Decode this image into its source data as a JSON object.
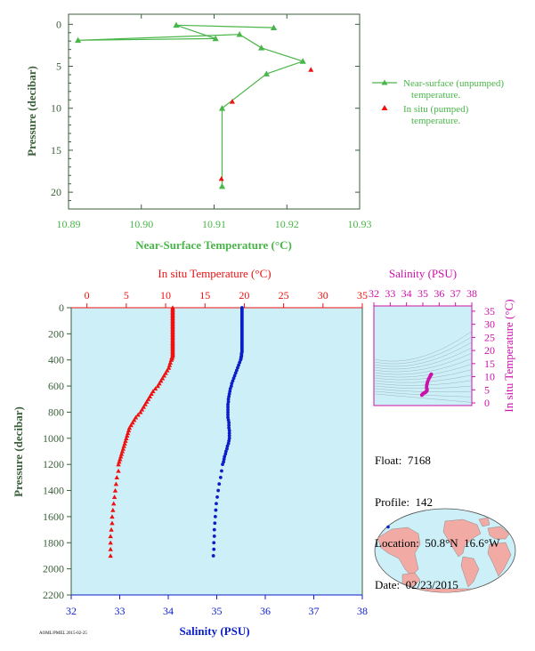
{
  "colors": {
    "axis_green": "#3a5f3a",
    "near_surface_green": "#49b649",
    "in_situ_red": "#ee1111",
    "salinity_blue": "#0b1ec8",
    "salinity_magenta": "#cc11aa",
    "panel_background": "#cdeff7",
    "land": "#f2aaa5",
    "ocean": "#cdeff7"
  },
  "info": {
    "float_label": "Float:",
    "float": "7168",
    "profile_label": "Profile:",
    "profile": "142",
    "location_label": "Location:",
    "location": "50.8°N  16.6°W",
    "date_label": "Date:",
    "date": "02/23/2015"
  },
  "footer_text": "AOML/PMEL 2015-02-25",
  "chart_data": [
    {
      "type": "line",
      "name": "near-surface",
      "xlabel": "Near-Surface Temperature (°C)",
      "ylabel": "Pressure (decibar)",
      "xlim": [
        10.89,
        10.93
      ],
      "ylim": [
        22,
        -1.2
      ],
      "xticks": [
        "10.89",
        "10.90",
        "10.91",
        "10.92",
        "10.93"
      ],
      "yticks": [
        "0",
        "5",
        "10",
        "15",
        "20"
      ],
      "legend_position": "right",
      "series": [
        {
          "name": "Near-surface (unpumped) temperature.",
          "marker": "triangle",
          "points": [
            [
              10.9182,
              0.4
            ],
            [
              10.9048,
              0.1
            ],
            [
              10.9102,
              1.7
            ],
            [
              10.8913,
              1.9
            ],
            [
              10.9135,
              1.2
            ],
            [
              10.9165,
              2.8
            ],
            [
              10.9222,
              4.4
            ],
            [
              10.9172,
              5.9
            ],
            [
              10.9111,
              10.0
            ],
            [
              10.9111,
              19.3
            ]
          ]
        },
        {
          "name": "In situ (pumped) temperature.",
          "marker": "triangle",
          "points": [
            [
              10.9233,
              5.4
            ],
            [
              10.9125,
              9.2
            ],
            [
              10.911,
              18.4
            ]
          ]
        }
      ]
    },
    {
      "type": "scatter",
      "name": "profile",
      "ylabel": "Pressure (decibar)",
      "ylim": [
        2200,
        0
      ],
      "yticks": [
        "0",
        "200",
        "400",
        "600",
        "800",
        "1000",
        "1200",
        "1400",
        "1600",
        "1800",
        "2000",
        "2200"
      ],
      "x_top": {
        "label": "In situ Temperature (°C)",
        "lim": [
          -2,
          35
        ],
        "ticks": [
          "0",
          "5",
          "10",
          "15",
          "20",
          "25",
          "30",
          "35"
        ]
      },
      "x_bottom": {
        "label": "Salinity (PSU)",
        "lim": [
          32,
          38
        ],
        "ticks": [
          "32",
          "33",
          "34",
          "35",
          "36",
          "37",
          "38"
        ]
      },
      "series": [
        {
          "name": "In situ Temperature",
          "marker": "triangle",
          "depths": [
            0,
            10,
            20,
            30,
            40,
            50,
            60,
            70,
            80,
            90,
            100,
            110,
            120,
            130,
            140,
            150,
            160,
            170,
            180,
            190,
            200,
            210,
            220,
            230,
            240,
            250,
            260,
            270,
            280,
            290,
            300,
            310,
            320,
            330,
            340,
            350,
            360,
            370,
            380,
            390,
            400,
            420,
            440,
            460,
            480,
            500,
            520,
            540,
            560,
            580,
            600,
            620,
            640,
            660,
            680,
            700,
            720,
            740,
            760,
            780,
            800,
            820,
            840,
            860,
            880,
            900,
            920,
            940,
            960,
            980,
            1000,
            1020,
            1040,
            1060,
            1080,
            1100,
            1120,
            1140,
            1160,
            1180,
            1200,
            1250,
            1300,
            1350,
            1400,
            1450,
            1500,
            1550,
            1600,
            1650,
            1700,
            1750,
            1800,
            1850,
            1900
          ],
          "values": [
            10.9,
            10.9,
            10.9,
            10.9,
            10.9,
            10.9,
            10.9,
            10.9,
            10.9,
            10.9,
            10.9,
            10.9,
            10.9,
            10.9,
            10.9,
            10.9,
            10.9,
            10.9,
            10.9,
            10.9,
            10.9,
            10.9,
            10.9,
            10.9,
            10.9,
            10.9,
            10.9,
            10.9,
            10.9,
            10.9,
            10.9,
            10.9,
            10.9,
            10.9,
            10.9,
            10.9,
            10.9,
            10.9,
            10.8,
            10.8,
            10.7,
            10.6,
            10.5,
            10.4,
            10.2,
            10.0,
            9.8,
            9.6,
            9.4,
            9.2,
            9.0,
            8.7,
            8.4,
            8.2,
            8.0,
            7.8,
            7.6,
            7.4,
            7.2,
            7.0,
            6.8,
            6.5,
            6.2,
            6.0,
            5.8,
            5.6,
            5.4,
            5.3,
            5.2,
            5.1,
            5.0,
            4.9,
            4.8,
            4.7,
            4.6,
            4.5,
            4.4,
            4.3,
            4.2,
            4.1,
            4.0,
            4.0,
            3.8,
            3.7,
            3.6,
            3.5,
            3.4,
            3.3,
            3.2,
            3.2,
            3.1,
            3.0,
            3.0,
            3.0,
            3.0
          ]
        },
        {
          "name": "Salinity",
          "marker": "dot",
          "depths": [
            0,
            10,
            20,
            30,
            40,
            50,
            60,
            70,
            80,
            90,
            100,
            110,
            120,
            130,
            140,
            150,
            160,
            170,
            180,
            190,
            200,
            210,
            220,
            230,
            240,
            250,
            260,
            270,
            280,
            290,
            300,
            310,
            320,
            330,
            340,
            350,
            360,
            370,
            380,
            390,
            400,
            420,
            440,
            460,
            480,
            500,
            520,
            540,
            560,
            580,
            600,
            620,
            640,
            660,
            680,
            700,
            720,
            740,
            760,
            780,
            800,
            820,
            840,
            860,
            880,
            900,
            920,
            940,
            960,
            980,
            1000,
            1020,
            1040,
            1060,
            1080,
            1100,
            1120,
            1140,
            1160,
            1180,
            1200,
            1250,
            1300,
            1350,
            1400,
            1450,
            1500,
            1550,
            1600,
            1650,
            1700,
            1750,
            1800,
            1850,
            1900
          ],
          "values": [
            35.52,
            35.52,
            35.52,
            35.52,
            35.52,
            35.52,
            35.52,
            35.52,
            35.52,
            35.52,
            35.52,
            35.52,
            35.52,
            35.52,
            35.52,
            35.52,
            35.52,
            35.52,
            35.52,
            35.52,
            35.52,
            35.52,
            35.52,
            35.52,
            35.52,
            35.52,
            35.52,
            35.52,
            35.52,
            35.52,
            35.52,
            35.52,
            35.52,
            35.52,
            35.52,
            35.51,
            35.51,
            35.51,
            35.5,
            35.5,
            35.49,
            35.47,
            35.45,
            35.43,
            35.41,
            35.39,
            35.37,
            35.35,
            35.33,
            35.31,
            35.3,
            35.28,
            35.27,
            35.26,
            35.25,
            35.24,
            35.24,
            35.23,
            35.23,
            35.23,
            35.23,
            35.23,
            35.23,
            35.24,
            35.25,
            35.25,
            35.25,
            35.26,
            35.26,
            35.26,
            35.26,
            35.25,
            35.24,
            35.22,
            35.21,
            35.19,
            35.18,
            35.16,
            35.15,
            35.14,
            35.12,
            35.1,
            35.08,
            35.05,
            35.03,
            35.01,
            34.99,
            34.98,
            34.97,
            34.96,
            34.95,
            34.95,
            34.94,
            34.94,
            34.93
          ]
        }
      ]
    },
    {
      "type": "scatter",
      "name": "t-s",
      "x_top_label": "Salinity (PSU)",
      "y_right_label": "In situ Temperature (°C)",
      "xlim": [
        32,
        38
      ],
      "ylim": [
        -1,
        37
      ],
      "xticks": [
        "32",
        "33",
        "34",
        "35",
        "36",
        "37",
        "38"
      ],
      "yticks": [
        "0",
        "5",
        "10",
        "15",
        "20",
        "25",
        "30",
        "35"
      ],
      "series": [
        {
          "name": "T-S",
          "marker": "dot",
          "points": [
            [
              35.52,
              10.9
            ],
            [
              35.5,
              10.8
            ],
            [
              35.45,
              10.2
            ],
            [
              35.4,
              9.6
            ],
            [
              35.35,
              9.0
            ],
            [
              35.3,
              8.2
            ],
            [
              35.27,
              7.5
            ],
            [
              35.24,
              6.8
            ],
            [
              35.23,
              6.0
            ],
            [
              35.24,
              5.5
            ],
            [
              35.26,
              5.0
            ],
            [
              35.24,
              4.6
            ],
            [
              35.2,
              4.3
            ],
            [
              35.15,
              4.0
            ],
            [
              35.08,
              3.8
            ],
            [
              35.01,
              3.5
            ],
            [
              34.97,
              3.2
            ],
            [
              34.94,
              3.0
            ]
          ]
        }
      ]
    },
    {
      "type": "map",
      "name": "location-map",
      "float_location": {
        "lat": 50.8,
        "lon": -16.6
      }
    }
  ]
}
